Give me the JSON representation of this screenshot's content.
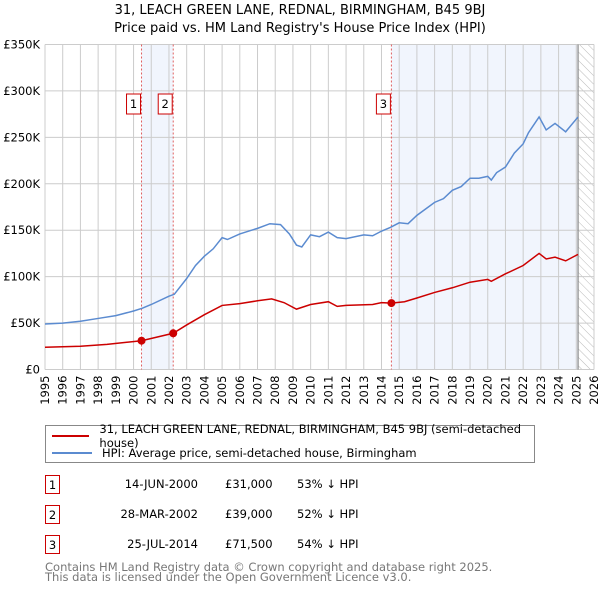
{
  "title": "31, LEACH GREEN LANE, REDNAL, BIRMINGHAM, B45 9BJ",
  "subtitle": "Price paid vs. HM Land Registry's House Price Index (HPI)",
  "chart_data": {
    "type": "line",
    "xlim": [
      1995,
      2026
    ],
    "ylim": [
      0,
      350000
    ],
    "yticks": [
      0,
      50000,
      100000,
      150000,
      200000,
      250000,
      300000,
      350000
    ],
    "ytick_labels": [
      "£0",
      "£50K",
      "£100K",
      "£150K",
      "£200K",
      "£250K",
      "£300K",
      "£350K"
    ],
    "xticks": [
      1995,
      1996,
      1997,
      1998,
      1999,
      2000,
      2001,
      2002,
      2003,
      2004,
      2005,
      2006,
      2007,
      2008,
      2009,
      2010,
      2011,
      2012,
      2013,
      2014,
      2015,
      2016,
      2017,
      2018,
      2019,
      2020,
      2021,
      2022,
      2023,
      2024,
      2025,
      2026
    ],
    "grid": true,
    "legend_placement": "below",
    "series": [
      {
        "name": "31, LEACH GREEN LANE, REDNAL, BIRMINGHAM, B45 9BJ (semi-detached house)",
        "color": "#cc0000",
        "x": [
          1995,
          1997,
          1998.5,
          2000.45,
          2002.24,
          2003,
          2004,
          2005,
          2006,
          2007,
          2007.8,
          2008.5,
          2009.2,
          2010,
          2011,
          2011.5,
          2012,
          2013.5,
          2014,
          2014.56,
          2015.3,
          2016,
          2017,
          2018,
          2019,
          2020,
          2020.2,
          2021,
          2022,
          2022.9,
          2023.3,
          2023.8,
          2024.4,
          2025.1
        ],
        "y": [
          24000,
          25000,
          27000,
          31000,
          39000,
          48000,
          59000,
          69000,
          71000,
          74000,
          76000,
          72000,
          65000,
          70000,
          73000,
          68000,
          69000,
          70000,
          72000,
          71500,
          73000,
          77000,
          83000,
          88000,
          94000,
          97000,
          95000,
          103000,
          112000,
          125000,
          119000,
          121000,
          117000,
          124000
        ]
      },
      {
        "name": "HPI: Average price, semi-detached house, Birmingham",
        "color": "#5b8bd0",
        "x": [
          1995,
          1996,
          1997,
          1998,
          1999,
          2000,
          2000.5,
          2001,
          2002,
          2002.3,
          2003,
          2003.5,
          2004,
          2004.5,
          2005,
          2005.3,
          2006,
          2007,
          2007.7,
          2008.3,
          2008.8,
          2009.2,
          2009.5,
          2010,
          2010.5,
          2011,
          2011.5,
          2012,
          2013,
          2013.5,
          2014,
          2014.5,
          2015,
          2015.5,
          2016,
          2017,
          2017.5,
          2018,
          2018.5,
          2019,
          2019.5,
          2020,
          2020.2,
          2020.5,
          2021,
          2021.5,
          2022,
          2022.3,
          2022.9,
          2023.3,
          2023.8,
          2024.4,
          2025.1
        ],
        "y": [
          49000,
          50000,
          52000,
          55000,
          58000,
          63000,
          66000,
          70000,
          79000,
          81000,
          98000,
          112000,
          122000,
          130000,
          142000,
          140000,
          146000,
          152000,
          157000,
          156000,
          146000,
          134000,
          132000,
          145000,
          143000,
          148000,
          142000,
          141000,
          145000,
          144000,
          149000,
          153000,
          158000,
          157000,
          166000,
          180000,
          184000,
          193000,
          197000,
          206000,
          206000,
          208000,
          204000,
          212000,
          218000,
          233000,
          243000,
          255000,
          272000,
          258000,
          265000,
          256000,
          272000
        ]
      }
    ],
    "sales": [
      {
        "label": "1",
        "x": 2000.45,
        "y": 31000,
        "date": "14-JUN-2000",
        "price": "£31,000",
        "pct": "53% ↓ HPI"
      },
      {
        "label": "2",
        "x": 2002.24,
        "y": 39000,
        "date": "28-MAR-2002",
        "price": "£39,000",
        "pct": "52% ↓ HPI"
      },
      {
        "label": "3",
        "x": 2014.56,
        "y": 71500,
        "date": "25-JUL-2014",
        "price": "£71,500",
        "pct": "54% ↓ HPI"
      }
    ],
    "shaded": [
      [
        2000.45,
        2002.24
      ],
      [
        2014.56,
        2025.1
      ]
    ],
    "forecast_start": 2025.1
  },
  "footer": [
    "Contains HM Land Registry data © Crown copyright and database right 2025.",
    "This data is licensed under the Open Government Licence v3.0."
  ]
}
